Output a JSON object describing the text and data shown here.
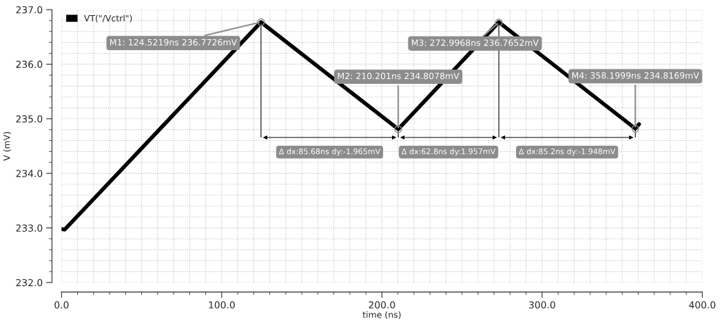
{
  "chart_data": {
    "type": "line",
    "xlabel": "time (ns)",
    "ylabel": "V (mV)",
    "x": [
      0,
      2,
      124.5219,
      210.201,
      272.9968,
      358.1999,
      360.5
    ],
    "series": [
      {
        "name": "VT(\"/Vctrl\")",
        "color": "#000000",
        "values": [
          232.98,
          232.97,
          236.77,
          234.81,
          236.77,
          234.82,
          234.9
        ]
      }
    ],
    "xlim": [
      0,
      400
    ],
    "ylim": [
      232,
      237
    ],
    "xticks": [
      {
        "value": 0,
        "label": "0.0"
      },
      {
        "value": 100,
        "label": "100.0"
      },
      {
        "value": 200,
        "label": "200.0"
      },
      {
        "value": 300,
        "label": "300.0"
      },
      {
        "value": 400,
        "label": "400.0"
      }
    ],
    "yticks": [
      {
        "value": 232,
        "label": "232.0"
      },
      {
        "value": 233,
        "label": "233.0"
      },
      {
        "value": 234,
        "label": "234.0"
      },
      {
        "value": 235,
        "label": "235.0"
      },
      {
        "value": 236,
        "label": "236.0"
      },
      {
        "value": 237,
        "label": "237.0"
      }
    ],
    "grid": true,
    "legend": "top left",
    "annotations": [
      {
        "text": "M1: 124.5219ns 236.7726mV",
        "x": 124.5219,
        "y": 236.7726
      },
      {
        "text": "M2: 210.201ns 234.8078mV",
        "x": 210.201,
        "y": 234.8078
      },
      {
        "text": "M3: 272.9968ns 236.7652mV",
        "x": 272.9968,
        "y": 236.7652
      },
      {
        "text": "M4: 358.1999ns 234.8169mV",
        "x": 358.1999,
        "y": 234.8169
      },
      "Δ dx:85.68ns dy:-1.965mV",
      "Δ dx:62.8ns dy:1.957mV",
      "Δ dx:85.2ns dy:-1.948mV"
    ]
  }
}
